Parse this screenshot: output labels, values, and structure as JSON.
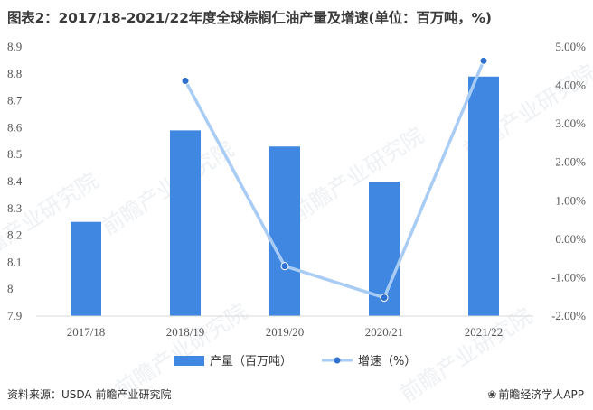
{
  "title": "图表2：2017/18-2021/22年度全球棕榈仁油产量及增速(单位：百万吨，%)",
  "source": "资料来源：USDA 前瞻产业研究院",
  "brand": "前瞻经济学人APP",
  "watermark": "前瞻产业研究院",
  "colors": {
    "bar": "#3f87e0",
    "line": "#a9ccf5",
    "marker": "#2e6fd0"
  },
  "chart_data": {
    "type": "bar",
    "categories": [
      "2017/18",
      "2018/19",
      "2019/20",
      "2020/21",
      "2021/22"
    ],
    "series": [
      {
        "name": "产量（百万吨）",
        "type": "bar",
        "axis": "left",
        "values": [
          8.25,
          8.59,
          8.53,
          8.4,
          8.79
        ]
      },
      {
        "name": "增速（%）",
        "type": "line",
        "axis": "right",
        "values": [
          null,
          4.12,
          -0.7,
          -1.52,
          4.64
        ]
      }
    ],
    "y_left": {
      "min": 7.9,
      "max": 8.9,
      "ticks": [
        "7.9",
        "8",
        "8.1",
        "8.2",
        "8.3",
        "8.4",
        "8.5",
        "8.6",
        "8.7",
        "8.8",
        "8.9"
      ]
    },
    "y_right": {
      "min": -2,
      "max": 5,
      "ticks": [
        "-2.00%",
        "-1.00%",
        "0.00%",
        "1.00%",
        "2.00%",
        "3.00%",
        "4.00%",
        "5.00%"
      ]
    },
    "legend_position": "bottom",
    "grid": false
  }
}
